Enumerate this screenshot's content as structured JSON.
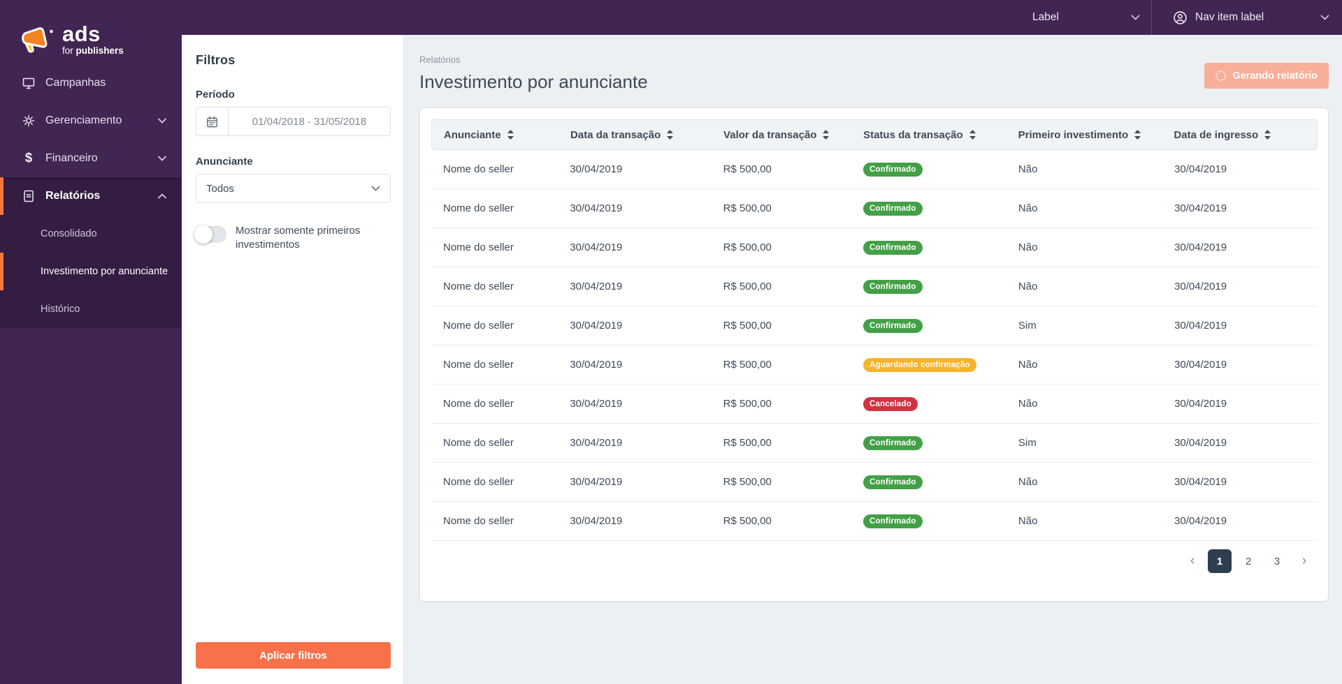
{
  "brand": {
    "ads": "ads",
    "for": "for ",
    "publishers": "publishers"
  },
  "topbar": {
    "label_dropdown": "Label",
    "nav_item": "Nav item label"
  },
  "sidebar": {
    "items": [
      {
        "label": "Campanhas"
      },
      {
        "label": "Gerenciamento"
      },
      {
        "label": "Financeiro"
      },
      {
        "label": "Relatórios"
      }
    ],
    "submenu": [
      {
        "label": "Consolidado"
      },
      {
        "label": "Investimento por anunciante"
      },
      {
        "label": "Histórico"
      }
    ]
  },
  "filters": {
    "title": "Filtros",
    "period_label": "Período",
    "period_value": "01/04/2018 - 31/05/2018",
    "advertiser_label": "Anunciante",
    "advertiser_value": "Todos",
    "toggle_label": "Mostrar somente primeiros investimentos",
    "apply_button": "Aplicar filtros"
  },
  "main": {
    "breadcrumb": "Relatórios",
    "title": "Investimento por anunciante",
    "generating_button": "Gerando relatório"
  },
  "table": {
    "columns": [
      "Anunciante",
      "Data da transação",
      "Valor da transação",
      "Status da transação",
      "Primeiro investimento",
      "Data de ingresso"
    ],
    "rows": [
      {
        "advertiser": "Nome do seller",
        "date": "30/04/2019",
        "value": "R$ 500,00",
        "status": "Confirmado",
        "status_type": "confirmed",
        "first_investment": "Não",
        "join_date": "30/04/2019"
      },
      {
        "advertiser": "Nome do seller",
        "date": "30/04/2019",
        "value": "R$ 500,00",
        "status": "Confirmado",
        "status_type": "confirmed",
        "first_investment": "Não",
        "join_date": "30/04/2019"
      },
      {
        "advertiser": "Nome do seller",
        "date": "30/04/2019",
        "value": "R$ 500,00",
        "status": "Confirmado",
        "status_type": "confirmed",
        "first_investment": "Não",
        "join_date": "30/04/2019"
      },
      {
        "advertiser": "Nome do seller",
        "date": "30/04/2019",
        "value": "R$ 500,00",
        "status": "Confirmado",
        "status_type": "confirmed",
        "first_investment": "Não",
        "join_date": "30/04/2019"
      },
      {
        "advertiser": "Nome do seller",
        "date": "30/04/2019",
        "value": "R$ 500,00",
        "status": "Confirmado",
        "status_type": "confirmed",
        "first_investment": "Sim",
        "join_date": "30/04/2019"
      },
      {
        "advertiser": "Nome do seller",
        "date": "30/04/2019",
        "value": "R$ 500,00",
        "status": "Aguardando confirmação",
        "status_type": "pending",
        "first_investment": "Não",
        "join_date": "30/04/2019"
      },
      {
        "advertiser": "Nome do seller",
        "date": "30/04/2019",
        "value": "R$ 500,00",
        "status": "Cancelado",
        "status_type": "canceled",
        "first_investment": "Não",
        "join_date": "30/04/2019"
      },
      {
        "advertiser": "Nome do seller",
        "date": "30/04/2019",
        "value": "R$ 500,00",
        "status": "Confirmado",
        "status_type": "confirmed",
        "first_investment": "Sim",
        "join_date": "30/04/2019"
      },
      {
        "advertiser": "Nome do seller",
        "date": "30/04/2019",
        "value": "R$ 500,00",
        "status": "Confirmado",
        "status_type": "confirmed",
        "first_investment": "Não",
        "join_date": "30/04/2019"
      },
      {
        "advertiser": "Nome do seller",
        "date": "30/04/2019",
        "value": "R$ 500,00",
        "status": "Confirmado",
        "status_type": "confirmed",
        "first_investment": "Não",
        "join_date": "30/04/2019"
      }
    ]
  },
  "pagination": {
    "pages": [
      "1",
      "2",
      "3"
    ],
    "active": "1"
  },
  "colors": {
    "sidebar_bg": "#412553",
    "sidebar_open_bg": "#341d42",
    "accent_orange": "#f4773c",
    "button_orange": "#f8714b",
    "button_orange_disabled": "#f9ae97",
    "status": {
      "confirmed": "#43a047",
      "pending": "#f7b32a",
      "canceled": "#d13242"
    },
    "pagination_active": "#2e3e50"
  }
}
